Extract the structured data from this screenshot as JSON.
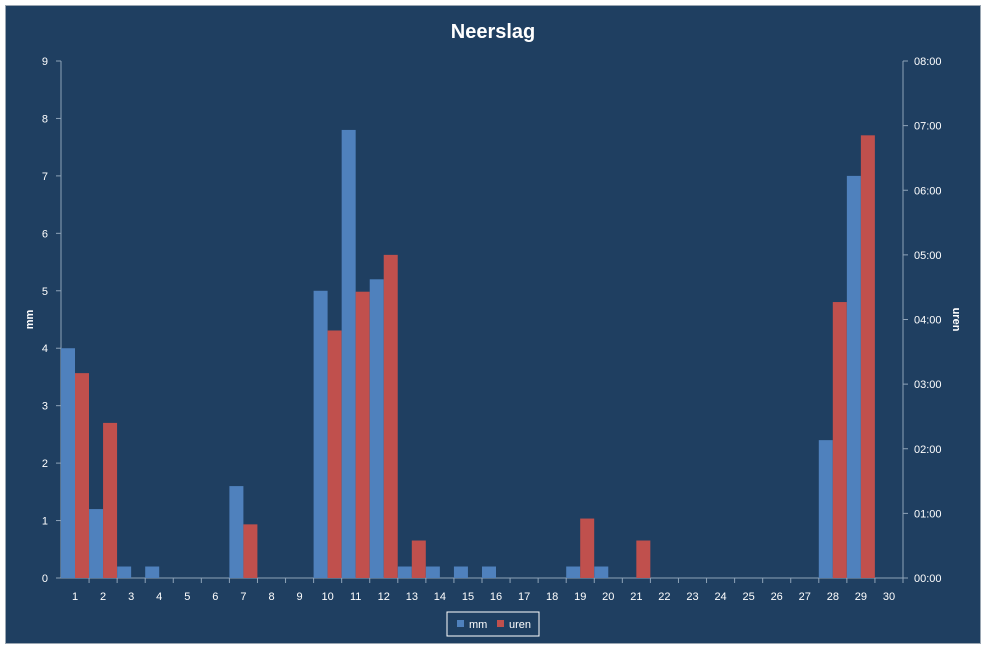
{
  "chart_data": {
    "type": "bar",
    "title": "Neerslag",
    "xlabel": "",
    "ylabel": "mm",
    "y2label": "uren",
    "categories": [
      "1",
      "2",
      "3",
      "4",
      "5",
      "6",
      "7",
      "8",
      "9",
      "10",
      "11",
      "12",
      "13",
      "14",
      "15",
      "16",
      "17",
      "18",
      "19",
      "20",
      "21",
      "22",
      "23",
      "24",
      "25",
      "26",
      "27",
      "28",
      "29",
      "30"
    ],
    "ylim": [
      0,
      9
    ],
    "yticks": [
      "0",
      "1",
      "2",
      "3",
      "4",
      "5",
      "6",
      "7",
      "8",
      "9"
    ],
    "y2lim_hours": [
      0,
      8
    ],
    "y2ticks": [
      "00:00",
      "01:00",
      "02:00",
      "03:00",
      "04:00",
      "05:00",
      "06:00",
      "07:00",
      "08:00"
    ],
    "grid": false,
    "legend_position": "bottom",
    "series": [
      {
        "name": "mm",
        "color": "#4f81bd",
        "axis": "left",
        "values": [
          4.0,
          1.2,
          0.2,
          0.2,
          0,
          0,
          1.6,
          0,
          0,
          5.0,
          7.8,
          5.2,
          0.2,
          0.2,
          0.2,
          0.2,
          0,
          0,
          0.2,
          0.2,
          0,
          0,
          0,
          0,
          0,
          0,
          0,
          2.4,
          7.0,
          0
        ]
      },
      {
        "name": "uren",
        "color": "#c0504d",
        "axis": "right",
        "values_hours": [
          3.17,
          2.4,
          0,
          0,
          0,
          0,
          0.83,
          0,
          0,
          3.83,
          4.43,
          5.0,
          0.58,
          0,
          0,
          0,
          0,
          0,
          0.92,
          0,
          0.58,
          0,
          0,
          0,
          0,
          0,
          0,
          4.27,
          6.85,
          0
        ]
      }
    ]
  }
}
